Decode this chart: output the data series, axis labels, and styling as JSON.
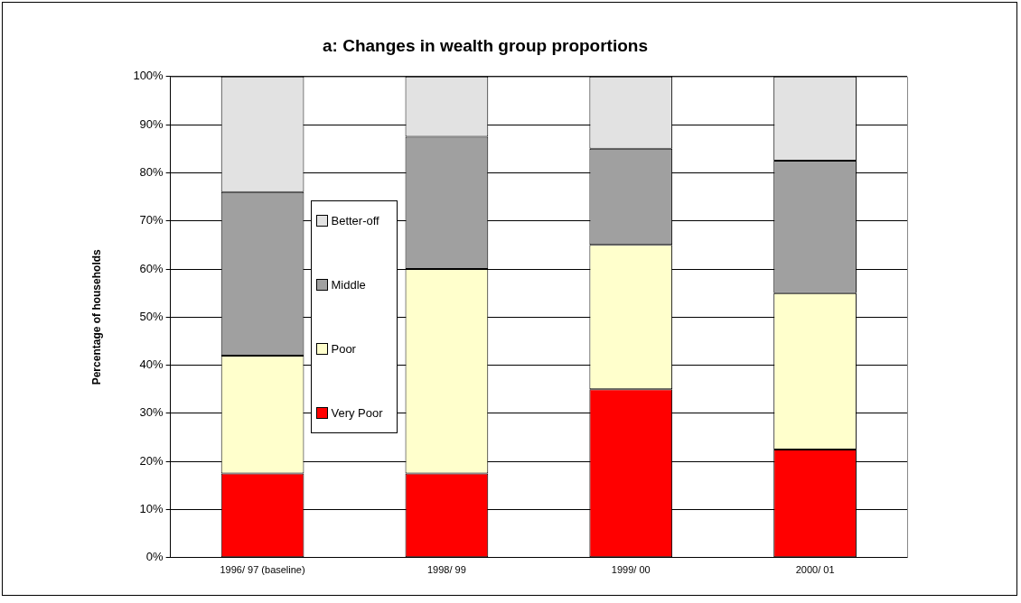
{
  "chart_data": {
    "type": "bar",
    "title": "a: Changes in wealth group proportions",
    "ylabel": "Percentage of households",
    "categories": [
      "1996/ 97 (baseline)",
      "1998/ 99",
      "1999/ 00",
      "2000/ 01"
    ],
    "stacked": true,
    "series": [
      {
        "name": "Very Poor",
        "color": "#ff0000",
        "values": [
          17.5,
          17.5,
          35,
          22.5
        ]
      },
      {
        "name": "Poor",
        "color": "#ffffcc",
        "values": [
          24.5,
          42.5,
          30,
          32.5
        ]
      },
      {
        "name": "Middle",
        "color": "#a0a0a0",
        "values": [
          34,
          27.5,
          20,
          27.5
        ]
      },
      {
        "name": "Better-off",
        "color": "#e2e2e2",
        "values": [
          24,
          12.5,
          15,
          17.5
        ]
      }
    ],
    "ylim": [
      0,
      100
    ],
    "yticks": [
      {
        "value": 0,
        "label": "0%"
      },
      {
        "value": 10,
        "label": "10%"
      },
      {
        "value": 20,
        "label": "20%"
      },
      {
        "value": 30,
        "label": "30%"
      },
      {
        "value": 40,
        "label": "40%"
      },
      {
        "value": 50,
        "label": "50%"
      },
      {
        "value": 60,
        "label": "60%"
      },
      {
        "value": 70,
        "label": "70%"
      },
      {
        "value": 80,
        "label": "80%"
      },
      {
        "value": 90,
        "label": "90%"
      },
      {
        "value": 100,
        "label": "100%"
      }
    ],
    "grid": "y",
    "legend": "left"
  }
}
